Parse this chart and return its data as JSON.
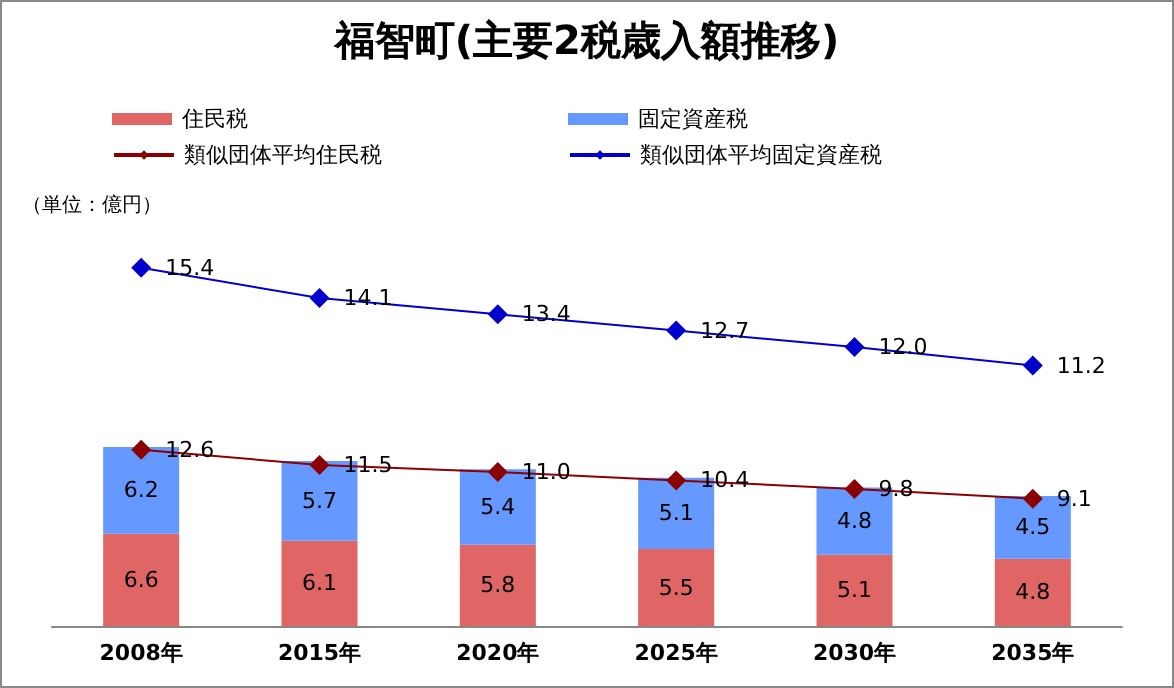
{
  "chart_data": {
    "type": "bar",
    "title": "福智町(主要2税歳入額推移)",
    "annotations": [
      "（単位：億円）"
    ],
    "categories": [
      "2008年",
      "2015年",
      "2020年",
      "2025年",
      "2030年",
      "2035年"
    ],
    "stacked": true,
    "data_labels": true,
    "legend": "top",
    "grid": false,
    "tick_labels": "x",
    "marker": "diamond",
    "series": [
      {
        "name": "住民税",
        "color": "#e06666",
        "values": [
          6.6,
          6.1,
          5.8,
          5.5,
          5.1,
          4.8
        ]
      },
      {
        "name": "固定資産税",
        "color": "#6699ff",
        "values": [
          6.2,
          5.7,
          5.4,
          5.1,
          4.8,
          4.5
        ]
      },
      {
        "name": "類似団体平均住民税",
        "type": "line",
        "color": "#8b0000",
        "values": [
          12.6,
          11.5,
          11.0,
          10.4,
          9.8,
          9.1
        ],
        "value_labels": [
          "12.6",
          "11.5",
          "11.0",
          "10.4",
          "9.8",
          "9.1"
        ]
      },
      {
        "name": "類似団体平均固定資産税",
        "type": "line",
        "axis": "y2",
        "color": "#0000cc",
        "values": [
          15.4,
          14.1,
          13.4,
          12.7,
          12.0,
          11.2
        ],
        "value_labels": [
          "15.4",
          "14.1",
          "13.4",
          "12.7",
          "12.0",
          "11.2"
        ]
      }
    ]
  }
}
